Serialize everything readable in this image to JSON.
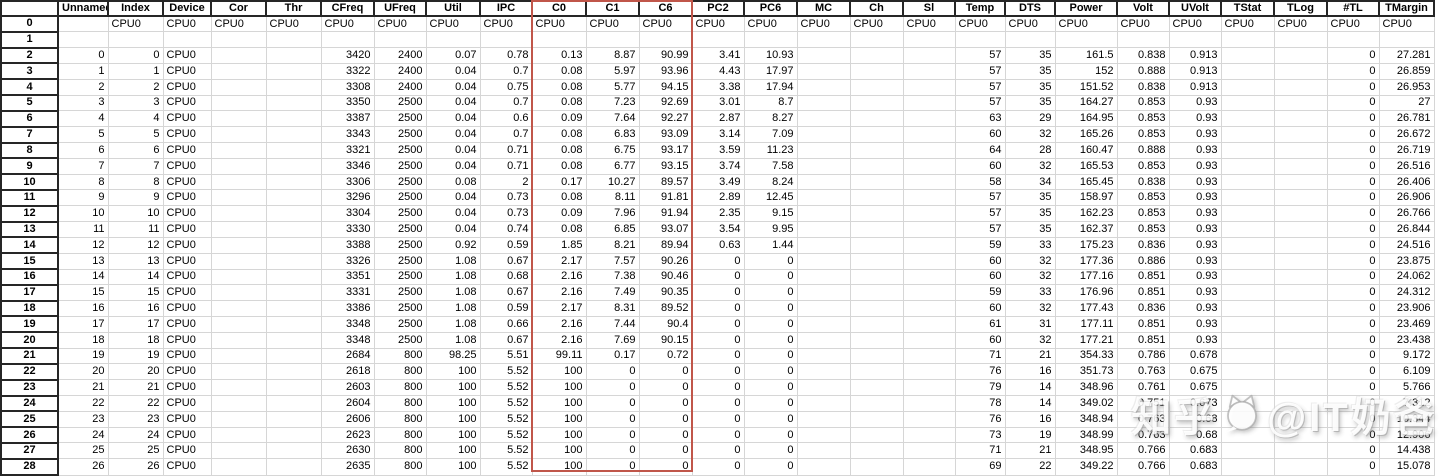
{
  "table": {
    "columns": [
      "",
      "Unnamed:",
      "Index",
      "Device",
      "Cor",
      "Thr",
      "CFreq",
      "UFreq",
      "Util",
      "IPC",
      "C0",
      "C1",
      "C6",
      "PC2",
      "PC6",
      "MC",
      "Ch",
      "Sl",
      "Temp",
      "DTS",
      "Power",
      "Volt",
      "UVolt",
      "TStat",
      "TLog",
      "#TL",
      "TMargin"
    ],
    "rows": [
      [
        "0",
        "",
        "CPU0",
        "CPU0",
        "CPU0",
        "CPU0",
        "CPU0",
        "CPU0",
        "CPU0",
        "CPU0",
        "CPU0",
        "CPU0",
        "CPU0",
        "CPU0",
        "CPU0",
        "CPU0",
        "CPU0",
        "CPU0",
        "CPU0",
        "CPU0",
        "CPU0",
        "CPU0",
        "CPU0",
        "CPU0",
        "CPU0",
        "CPU0",
        "CPU0"
      ],
      [
        "1",
        "",
        "",
        "",
        "",
        "",
        "",
        "",
        "",
        "",
        "",
        "",
        "",
        "",
        "",
        "",
        "",
        "",
        "",
        "",
        "",
        "",
        "",
        "",
        "",
        "",
        ""
      ],
      [
        "2",
        "0",
        "0",
        "CPU0",
        "",
        "",
        "3420",
        "2400",
        "0.07",
        "0.78",
        "0.13",
        "8.87",
        "90.99",
        "3.41",
        "10.93",
        "",
        "",
        "",
        "57",
        "35",
        "161.5",
        "0.838",
        "0.913",
        "",
        "",
        "0",
        "27.281"
      ],
      [
        "3",
        "1",
        "1",
        "CPU0",
        "",
        "",
        "3322",
        "2400",
        "0.04",
        "0.7",
        "0.08",
        "5.97",
        "93.96",
        "4.43",
        "17.97",
        "",
        "",
        "",
        "57",
        "35",
        "152",
        "0.888",
        "0.913",
        "",
        "",
        "0",
        "26.859"
      ],
      [
        "4",
        "2",
        "2",
        "CPU0",
        "",
        "",
        "3308",
        "2400",
        "0.04",
        "0.75",
        "0.08",
        "5.77",
        "94.15",
        "3.38",
        "17.94",
        "",
        "",
        "",
        "57",
        "35",
        "151.52",
        "0.838",
        "0.913",
        "",
        "",
        "0",
        "26.953"
      ],
      [
        "5",
        "3",
        "3",
        "CPU0",
        "",
        "",
        "3350",
        "2500",
        "0.04",
        "0.7",
        "0.08",
        "7.23",
        "92.69",
        "3.01",
        "8.7",
        "",
        "",
        "",
        "57",
        "35",
        "164.27",
        "0.853",
        "0.93",
        "",
        "",
        "0",
        "27"
      ],
      [
        "6",
        "4",
        "4",
        "CPU0",
        "",
        "",
        "3387",
        "2500",
        "0.04",
        "0.6",
        "0.09",
        "7.64",
        "92.27",
        "2.87",
        "8.27",
        "",
        "",
        "",
        "63",
        "29",
        "164.95",
        "0.853",
        "0.93",
        "",
        "",
        "0",
        "26.781"
      ],
      [
        "7",
        "5",
        "5",
        "CPU0",
        "",
        "",
        "3343",
        "2500",
        "0.04",
        "0.7",
        "0.08",
        "6.83",
        "93.09",
        "3.14",
        "7.09",
        "",
        "",
        "",
        "60",
        "32",
        "165.26",
        "0.853",
        "0.93",
        "",
        "",
        "0",
        "26.672"
      ],
      [
        "8",
        "6",
        "6",
        "CPU0",
        "",
        "",
        "3321",
        "2500",
        "0.04",
        "0.71",
        "0.08",
        "6.75",
        "93.17",
        "3.59",
        "11.23",
        "",
        "",
        "",
        "64",
        "28",
        "160.47",
        "0.888",
        "0.93",
        "",
        "",
        "0",
        "26.719"
      ],
      [
        "9",
        "7",
        "7",
        "CPU0",
        "",
        "",
        "3346",
        "2500",
        "0.04",
        "0.71",
        "0.08",
        "6.77",
        "93.15",
        "3.74",
        "7.58",
        "",
        "",
        "",
        "60",
        "32",
        "165.53",
        "0.853",
        "0.93",
        "",
        "",
        "0",
        "26.516"
      ],
      [
        "10",
        "8",
        "8",
        "CPU0",
        "",
        "",
        "3306",
        "2500",
        "0.08",
        "2",
        "0.17",
        "10.27",
        "89.57",
        "3.49",
        "8.24",
        "",
        "",
        "",
        "58",
        "34",
        "165.45",
        "0.838",
        "0.93",
        "",
        "",
        "0",
        "26.406"
      ],
      [
        "11",
        "9",
        "9",
        "CPU0",
        "",
        "",
        "3296",
        "2500",
        "0.04",
        "0.73",
        "0.08",
        "8.11",
        "91.81",
        "2.89",
        "12.45",
        "",
        "",
        "",
        "57",
        "35",
        "158.97",
        "0.853",
        "0.93",
        "",
        "",
        "0",
        "26.906"
      ],
      [
        "12",
        "10",
        "10",
        "CPU0",
        "",
        "",
        "3304",
        "2500",
        "0.04",
        "0.73",
        "0.09",
        "7.96",
        "91.94",
        "2.35",
        "9.15",
        "",
        "",
        "",
        "57",
        "35",
        "162.23",
        "0.853",
        "0.93",
        "",
        "",
        "0",
        "26.766"
      ],
      [
        "13",
        "11",
        "11",
        "CPU0",
        "",
        "",
        "3330",
        "2500",
        "0.04",
        "0.74",
        "0.08",
        "6.85",
        "93.07",
        "3.54",
        "9.95",
        "",
        "",
        "",
        "57",
        "35",
        "162.37",
        "0.853",
        "0.93",
        "",
        "",
        "0",
        "26.844"
      ],
      [
        "14",
        "12",
        "12",
        "CPU0",
        "",
        "",
        "3388",
        "2500",
        "0.92",
        "0.59",
        "1.85",
        "8.21",
        "89.94",
        "0.63",
        "1.44",
        "",
        "",
        "",
        "59",
        "33",
        "175.23",
        "0.836",
        "0.93",
        "",
        "",
        "0",
        "24.516"
      ],
      [
        "15",
        "13",
        "13",
        "CPU0",
        "",
        "",
        "3326",
        "2500",
        "1.08",
        "0.67",
        "2.17",
        "7.57",
        "90.26",
        "0",
        "0",
        "",
        "",
        "",
        "60",
        "32",
        "177.36",
        "0.886",
        "0.93",
        "",
        "",
        "0",
        "23.875"
      ],
      [
        "16",
        "14",
        "14",
        "CPU0",
        "",
        "",
        "3351",
        "2500",
        "1.08",
        "0.68",
        "2.16",
        "7.38",
        "90.46",
        "0",
        "0",
        "",
        "",
        "",
        "60",
        "32",
        "177.16",
        "0.851",
        "0.93",
        "",
        "",
        "0",
        "24.062"
      ],
      [
        "17",
        "15",
        "15",
        "CPU0",
        "",
        "",
        "3331",
        "2500",
        "1.08",
        "0.67",
        "2.16",
        "7.49",
        "90.35",
        "0",
        "0",
        "",
        "",
        "",
        "59",
        "33",
        "176.96",
        "0.851",
        "0.93",
        "",
        "",
        "0",
        "24.312"
      ],
      [
        "18",
        "16",
        "16",
        "CPU0",
        "",
        "",
        "3386",
        "2500",
        "1.08",
        "0.59",
        "2.17",
        "8.31",
        "89.52",
        "0",
        "0",
        "",
        "",
        "",
        "60",
        "32",
        "177.43",
        "0.836",
        "0.93",
        "",
        "",
        "0",
        "23.906"
      ],
      [
        "19",
        "17",
        "17",
        "CPU0",
        "",
        "",
        "3348",
        "2500",
        "1.08",
        "0.66",
        "2.16",
        "7.44",
        "90.4",
        "0",
        "0",
        "",
        "",
        "",
        "61",
        "31",
        "177.11",
        "0.851",
        "0.93",
        "",
        "",
        "0",
        "23.469"
      ],
      [
        "20",
        "18",
        "18",
        "CPU0",
        "",
        "",
        "3348",
        "2500",
        "1.08",
        "0.67",
        "2.16",
        "7.69",
        "90.15",
        "0",
        "0",
        "",
        "",
        "",
        "60",
        "32",
        "177.21",
        "0.851",
        "0.93",
        "",
        "",
        "0",
        "23.438"
      ],
      [
        "21",
        "19",
        "19",
        "CPU0",
        "",
        "",
        "2684",
        "800",
        "98.25",
        "5.51",
        "99.11",
        "0.17",
        "0.72",
        "0",
        "0",
        "",
        "",
        "",
        "71",
        "21",
        "354.33",
        "0.786",
        "0.678",
        "",
        "",
        "0",
        "9.172"
      ],
      [
        "22",
        "20",
        "20",
        "CPU0",
        "",
        "",
        "2618",
        "800",
        "100",
        "5.52",
        "100",
        "0",
        "0",
        "0",
        "0",
        "",
        "",
        "",
        "76",
        "16",
        "351.73",
        "0.763",
        "0.675",
        "",
        "",
        "0",
        "6.109"
      ],
      [
        "23",
        "21",
        "21",
        "CPU0",
        "",
        "",
        "2603",
        "800",
        "100",
        "5.52",
        "100",
        "0",
        "0",
        "0",
        "0",
        "",
        "",
        "",
        "79",
        "14",
        "348.96",
        "0.761",
        "0.675",
        "",
        "",
        "0",
        "5.766"
      ],
      [
        "24",
        "22",
        "22",
        "CPU0",
        "",
        "",
        "2604",
        "800",
        "100",
        "5.52",
        "100",
        "0",
        "0",
        "0",
        "0",
        "",
        "",
        "",
        "78",
        "14",
        "349.02",
        "0.751",
        "0.673",
        "",
        "",
        "0",
        "7.312"
      ],
      [
        "25",
        "23",
        "23",
        "CPU0",
        "",
        "",
        "2606",
        "800",
        "100",
        "5.52",
        "100",
        "0",
        "0",
        "0",
        "0",
        "",
        "",
        "",
        "76",
        "16",
        "348.94",
        "0.763",
        "0.68",
        "",
        "",
        "0",
        "10.344"
      ],
      [
        "26",
        "24",
        "24",
        "CPU0",
        "",
        "",
        "2623",
        "800",
        "100",
        "5.52",
        "100",
        "0",
        "0",
        "0",
        "0",
        "",
        "",
        "",
        "73",
        "19",
        "348.99",
        "0.763",
        "0.68",
        "",
        "",
        "0",
        "12.906"
      ],
      [
        "27",
        "25",
        "25",
        "CPU0",
        "",
        "",
        "2630",
        "800",
        "100",
        "5.52",
        "100",
        "0",
        "0",
        "0",
        "0",
        "",
        "",
        "",
        "71",
        "21",
        "348.95",
        "0.766",
        "0.683",
        "",
        "",
        "0",
        "14.438"
      ],
      [
        "28",
        "26",
        "26",
        "CPU0",
        "",
        "",
        "2635",
        "800",
        "100",
        "5.52",
        "100",
        "0",
        "0",
        "0",
        "0",
        "",
        "",
        "",
        "69",
        "22",
        "349.22",
        "0.766",
        "0.683",
        "",
        "",
        "0",
        "15.078"
      ]
    ]
  },
  "highlight": {
    "columns": [
      "C0",
      "C1",
      "C6"
    ],
    "color": "#c0564a"
  },
  "watermark": {
    "prefix": "知乎",
    "suffix": "@IT奶爸"
  }
}
